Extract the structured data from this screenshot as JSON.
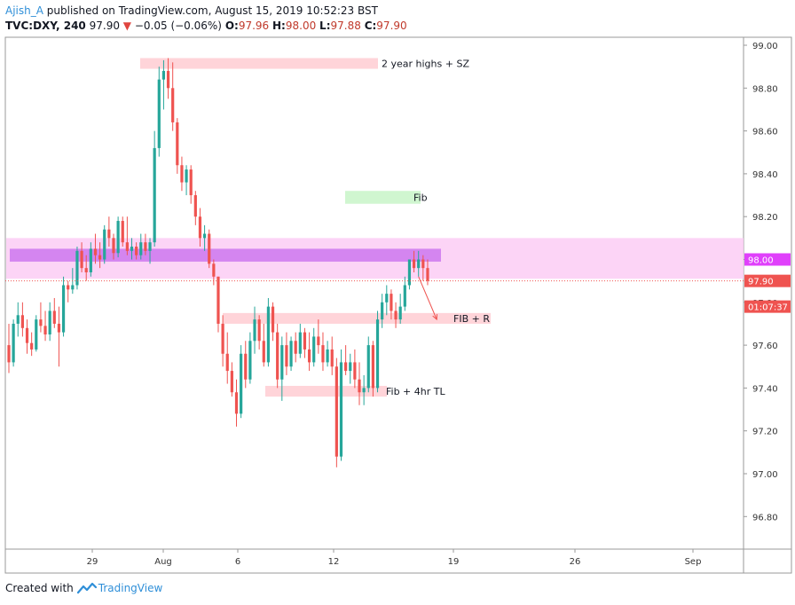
{
  "header": {
    "author": "Ajish_A",
    "published_text": "published on TradingView.com, August 15, 2019 10:52:23 BST",
    "symbol": "TVC:DXY, 240",
    "last": "97.90",
    "change_arrow": "▼",
    "change": "−0.05 (−0.06%)",
    "o_label": "O:",
    "o": "97.96",
    "h_label": "H:",
    "h": "98.00",
    "l_label": "L:",
    "l": "97.88",
    "c_label": "C:",
    "c": "97.90"
  },
  "footer": {
    "created_with": "Created with",
    "brand": "TradingView"
  },
  "colors": {
    "up": "#26a69a",
    "down": "#ef5350",
    "accent": "#2f8fd8"
  },
  "chart_data": {
    "type": "candlestick",
    "symbol": "TVC:DXY",
    "interval": "240",
    "ylim": [
      96.62,
      99.02
    ],
    "y_ticks": [
      "99.00",
      "98.80",
      "98.60",
      "98.40",
      "98.20",
      "98.00",
      "97.80",
      "97.60",
      "97.40",
      "97.20",
      "97.00",
      "96.80"
    ],
    "x_ticks": [
      "29",
      "Aug",
      "6",
      "12",
      "19",
      "26",
      "Sep"
    ],
    "price_labels": [
      {
        "text": "98.00",
        "value": 98.0,
        "color": "#e040fb"
      },
      {
        "text": "97.90",
        "value": 97.9,
        "color": "#ef5350"
      },
      {
        "text": "01:07:37",
        "value": 97.78,
        "color": "#ef5350"
      }
    ],
    "current_price": 97.9,
    "zones": [
      {
        "label": "2 year highs + SZ",
        "y_from": 98.89,
        "y_to": 98.94,
        "x_from_bar": 0.5,
        "x_to_bar": 2.6,
        "color": "#ffcdd2"
      },
      {
        "label": "Fib",
        "y_from": 98.26,
        "y_to": 98.32,
        "x_from_bar": 1.25,
        "x_to_bar": 1.53,
        "color": "#c8f5c8"
      },
      {
        "label": "",
        "y_from": 97.91,
        "y_to": 98.1,
        "x_from_bar": -1,
        "x_to_bar": 3.6,
        "color": "#fbcdf5"
      },
      {
        "label": "",
        "y_from": 97.99,
        "y_to": 98.05,
        "x_from_bar": -0.95,
        "x_to_bar": 2.95,
        "color": "#cc77ee"
      },
      {
        "label": "FIB + R",
        "y_from": 97.7,
        "y_to": 97.75,
        "x_from_bar": 0.85,
        "x_to_bar": 2.7,
        "color": "#ffcdd2"
      },
      {
        "label": "Fib + 4hr TL",
        "y_from": 97.36,
        "y_to": 97.41,
        "x_from_bar": 1.2,
        "x_to_bar": 2.55,
        "color": "#ffcdd2"
      }
    ],
    "candles": [
      [
        97.6,
        97.7,
        97.47,
        97.52
      ],
      [
        97.52,
        97.72,
        97.5,
        97.7
      ],
      [
        97.7,
        97.8,
        97.64,
        97.74
      ],
      [
        97.74,
        97.8,
        97.64,
        97.68
      ],
      [
        97.68,
        97.72,
        97.56,
        97.61
      ],
      [
        97.61,
        97.66,
        97.55,
        97.58
      ],
      [
        97.58,
        97.74,
        97.57,
        97.72
      ],
      [
        97.72,
        97.8,
        97.66,
        97.69
      ],
      [
        97.69,
        97.76,
        97.62,
        97.65
      ],
      [
        97.65,
        97.8,
        97.62,
        97.76
      ],
      [
        97.76,
        97.82,
        97.68,
        97.7
      ],
      [
        97.7,
        97.78,
        97.5,
        97.66
      ],
      [
        97.66,
        97.92,
        97.64,
        97.88
      ],
      [
        97.88,
        97.9,
        97.8,
        97.86
      ],
      [
        97.86,
        97.96,
        97.84,
        97.88
      ],
      [
        97.88,
        98.06,
        97.86,
        98.04
      ],
      [
        98.04,
        98.08,
        97.94,
        97.96
      ],
      [
        97.96,
        98.02,
        97.9,
        97.94
      ],
      [
        97.94,
        98.08,
        97.92,
        98.05
      ],
      [
        98.05,
        98.12,
        97.98,
        98.02
      ],
      [
        98.02,
        98.08,
        97.96,
        98.0
      ],
      [
        98.0,
        98.16,
        97.98,
        98.14
      ],
      [
        98.14,
        98.2,
        98.06,
        98.1
      ],
      [
        98.1,
        98.12,
        98.0,
        98.03
      ],
      [
        98.03,
        98.2,
        98.01,
        98.18
      ],
      [
        98.18,
        98.2,
        98.06,
        98.08
      ],
      [
        98.08,
        98.2,
        98.02,
        98.04
      ],
      [
        98.04,
        98.1,
        98.0,
        98.06
      ],
      [
        98.06,
        98.08,
        98.0,
        98.02
      ],
      [
        98.02,
        98.12,
        98.0,
        98.08
      ],
      [
        98.08,
        98.12,
        98.02,
        98.04
      ],
      [
        98.04,
        98.1,
        97.98,
        98.08
      ],
      [
        98.08,
        98.6,
        98.06,
        98.52
      ],
      [
        98.52,
        98.9,
        98.48,
        98.84
      ],
      [
        98.84,
        98.93,
        98.7,
        98.88
      ],
      [
        98.88,
        98.94,
        98.75,
        98.8
      ],
      [
        98.8,
        98.92,
        98.6,
        98.64
      ],
      [
        98.64,
        98.66,
        98.4,
        98.44
      ],
      [
        98.44,
        98.48,
        98.32,
        98.36
      ],
      [
        98.36,
        98.44,
        98.3,
        98.42
      ],
      [
        98.42,
        98.44,
        98.26,
        98.3
      ],
      [
        98.3,
        98.32,
        98.16,
        98.2
      ],
      [
        98.2,
        98.24,
        98.06,
        98.1
      ],
      [
        98.1,
        98.16,
        98.04,
        98.12
      ],
      [
        98.12,
        98.14,
        97.96,
        97.98
      ],
      [
        97.98,
        98.0,
        97.88,
        97.92
      ],
      [
        97.92,
        97.92,
        97.66,
        97.7
      ],
      [
        97.7,
        97.74,
        97.5,
        97.56
      ],
      [
        97.56,
        97.66,
        97.42,
        97.48
      ],
      [
        97.48,
        97.52,
        97.36,
        97.38
      ],
      [
        97.38,
        97.44,
        97.22,
        97.28
      ],
      [
        97.28,
        97.6,
        97.26,
        97.56
      ],
      [
        97.56,
        97.62,
        97.4,
        97.44
      ],
      [
        97.44,
        97.66,
        97.42,
        97.62
      ],
      [
        97.62,
        97.78,
        97.56,
        97.72
      ],
      [
        97.72,
        97.74,
        97.58,
        97.62
      ],
      [
        97.62,
        97.7,
        97.5,
        97.52
      ],
      [
        97.52,
        97.82,
        97.5,
        97.78
      ],
      [
        97.78,
        97.8,
        97.62,
        97.66
      ],
      [
        97.66,
        97.7,
        97.4,
        97.44
      ],
      [
        97.44,
        97.64,
        97.34,
        97.6
      ],
      [
        97.6,
        97.66,
        97.46,
        97.5
      ],
      [
        97.5,
        97.64,
        97.48,
        97.62
      ],
      [
        97.62,
        97.66,
        97.52,
        97.56
      ],
      [
        97.56,
        97.7,
        97.54,
        97.66
      ],
      [
        97.66,
        97.68,
        97.54,
        97.58
      ],
      [
        97.58,
        97.66,
        97.48,
        97.52
      ],
      [
        97.52,
        97.68,
        97.5,
        97.64
      ],
      [
        97.64,
        97.72,
        97.56,
        97.6
      ],
      [
        97.6,
        97.66,
        97.48,
        97.52
      ],
      [
        97.52,
        97.62,
        97.5,
        97.58
      ],
      [
        97.58,
        97.64,
        97.46,
        97.5
      ],
      [
        97.5,
        97.54,
        97.03,
        97.08
      ],
      [
        97.08,
        97.58,
        97.06,
        97.52
      ],
      [
        97.52,
        97.6,
        97.46,
        97.48
      ],
      [
        97.48,
        97.56,
        97.42,
        97.52
      ],
      [
        97.52,
        97.58,
        97.4,
        97.44
      ],
      [
        97.44,
        97.52,
        97.32,
        97.38
      ],
      [
        97.38,
        97.46,
        97.32,
        97.4
      ],
      [
        97.4,
        97.64,
        97.38,
        97.6
      ],
      [
        97.6,
        97.62,
        97.36,
        97.4
      ],
      [
        97.4,
        97.76,
        97.38,
        97.72
      ],
      [
        97.72,
        97.84,
        97.68,
        97.8
      ],
      [
        97.8,
        97.88,
        97.74,
        97.84
      ],
      [
        97.84,
        97.86,
        97.72,
        97.76
      ],
      [
        97.76,
        97.8,
        97.68,
        97.72
      ],
      [
        97.72,
        97.84,
        97.7,
        97.78
      ],
      [
        97.78,
        97.92,
        97.76,
        97.88
      ],
      [
        97.88,
        98.0,
        97.86,
        98.0
      ],
      [
        98.0,
        98.04,
        97.94,
        97.96
      ],
      [
        97.96,
        98.04,
        97.92,
        98.0
      ],
      [
        98.0,
        98.02,
        97.9,
        97.96
      ],
      [
        97.96,
        98.0,
        97.88,
        97.9
      ]
    ],
    "projection": {
      "from_bar": 90,
      "from_value": 97.92,
      "to_bar": 94,
      "to_value": 97.72
    }
  }
}
